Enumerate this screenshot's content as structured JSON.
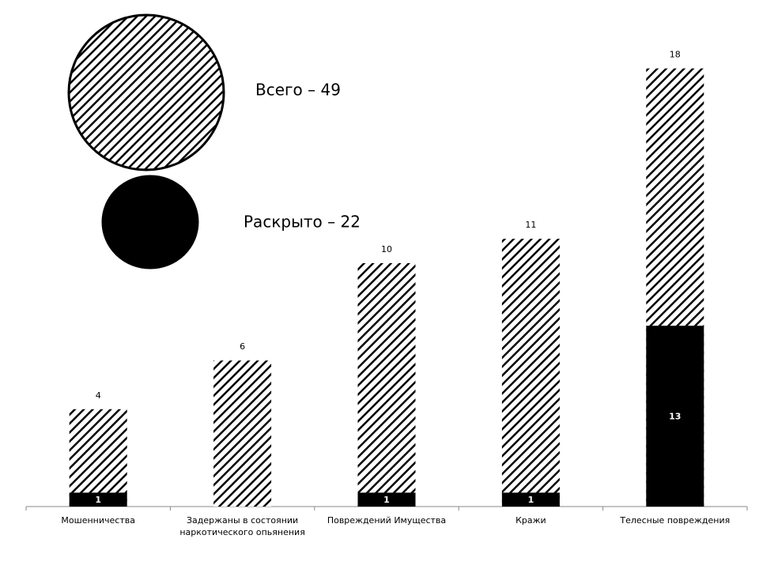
{
  "chart_data": {
    "type": "bar",
    "categories": [
      "Мошенничества",
      "Задержаны в состоянии наркотического опьянения",
      "Повреждений Имущества",
      "Кражи",
      "Телесные повреждения"
    ],
    "series": [
      {
        "name": "Всего – 49",
        "color": "#000000",
        "fill": "hatch",
        "values": [
          4,
          6,
          10,
          11,
          18
        ]
      },
      {
        "name": "Раскрыто – 22",
        "color": "#000000",
        "fill": "solid",
        "axis": "y2",
        "values": [
          1,
          null,
          1,
          1,
          13
        ]
      }
    ],
    "ylim": [
      0,
      20
    ],
    "y2lim": [
      0,
      35
    ],
    "grid": false,
    "legend": "top-left"
  }
}
